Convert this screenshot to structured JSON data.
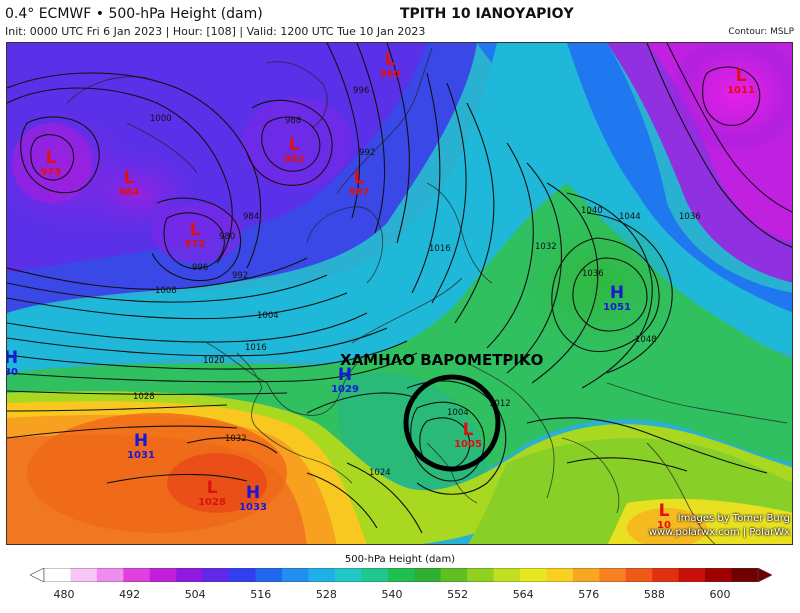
{
  "header": {
    "title_left": "0.4° ECMWF • 500-hPa Height (dam)",
    "subtitle": "Init: 0000 UTC Fri 6 Jan 2023 | Hour: [108] | Valid: 1200 UTC Tue 10 Jan 2023",
    "title_center": "ΤΡΙΤΗ 10 ΙΑΝΟΥΑΡΙΟΥ",
    "contour_note": "Contour: MSLP"
  },
  "annotation": {
    "label": "ΧΑΜΗΛΟ ΒΑΡΟΜΕΤΡΙΚΟ"
  },
  "pressure_centers": [
    {
      "type": "L",
      "value": "980"
    },
    {
      "type": "L",
      "value": "1011"
    },
    {
      "type": "L",
      "value": "975"
    },
    {
      "type": "L",
      "value": "984"
    },
    {
      "type": "L",
      "value": "982"
    },
    {
      "type": "L",
      "value": "987"
    },
    {
      "type": "L",
      "value": "972"
    },
    {
      "type": "H",
      "value": "1051"
    },
    {
      "type": "H",
      "value": "30"
    },
    {
      "type": "H",
      "value": "1029"
    },
    {
      "type": "L",
      "value": "1005"
    },
    {
      "type": "H",
      "value": "1031"
    },
    {
      "type": "L",
      "value": "1028"
    },
    {
      "type": "H",
      "value": "1033"
    },
    {
      "type": "L",
      "value": "10"
    }
  ],
  "isobar_labels": [
    "1000",
    "996",
    "988",
    "992",
    "984",
    "980",
    "996",
    "992",
    "1008",
    "1004",
    "1016",
    "1020",
    "1028",
    "1032",
    "1024",
    "1004",
    "1012",
    "1016",
    "1032",
    "1036",
    "1040",
    "1044",
    "1036",
    "1048"
  ],
  "credit": {
    "line1": "Images by Tomer Burg",
    "line2": "www.polarwx.com | PolarWx"
  },
  "legend": {
    "title": "500-hPa Height (dam)",
    "ticks": [
      "480",
      "492",
      "504",
      "516",
      "528",
      "540",
      "552",
      "564",
      "576",
      "588",
      "600"
    ],
    "colors": [
      "#ffffff",
      "#f7c6f7",
      "#f08cf0",
      "#e040e0",
      "#c020d8",
      "#9018e0",
      "#6028e8",
      "#3040f0",
      "#2068f0",
      "#2090f0",
      "#20b0e8",
      "#20c8c8",
      "#20c890",
      "#20c050",
      "#30b030",
      "#60c020",
      "#90d020",
      "#c0e020",
      "#e8e820",
      "#f8d020",
      "#f8a820",
      "#f88020",
      "#f05818",
      "#e03010",
      "#c81008",
      "#a00000",
      "#700000"
    ]
  }
}
